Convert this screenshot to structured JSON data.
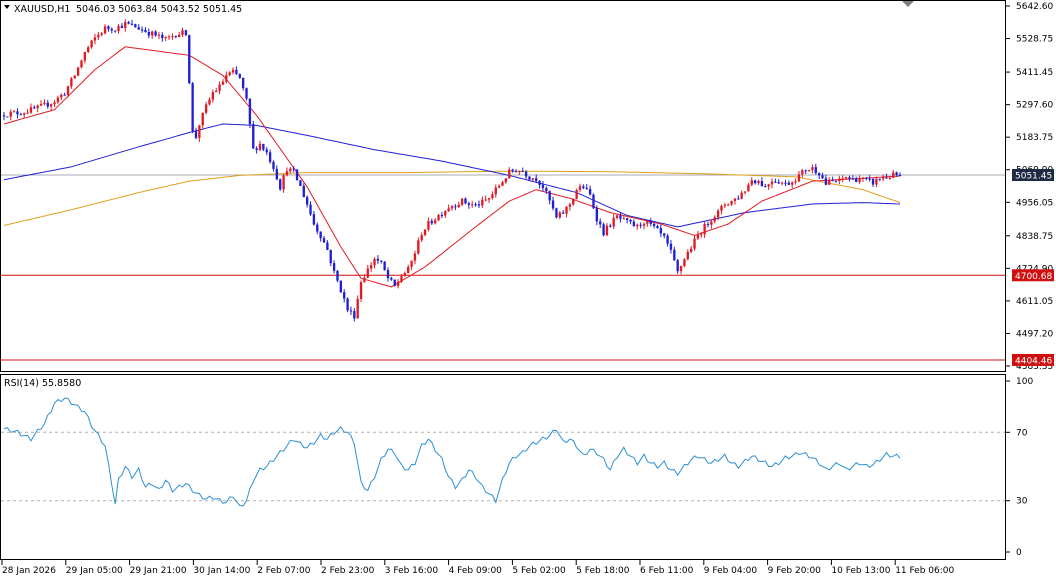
{
  "chart_data": [
    {
      "type": "candlestick",
      "title": "XAUUSD,H1",
      "ohlc_readout": [
        "5046.03",
        "5063.84",
        "5043.52",
        "5051.45"
      ],
      "y_ticks": [
        "5642.60",
        "5528.75",
        "5411.45",
        "5297.60",
        "5183.75",
        "5069.90",
        "4956.05",
        "4838.75",
        "4724.90",
        "4611.05",
        "4497.20",
        "4383.35"
      ],
      "ylim": [
        4383.35,
        5642.6
      ],
      "x_ticks": [
        "28 Jan 2026",
        "29 Jan 05:00",
        "29 Jan 21:00",
        "30 Jan 14:00",
        "2 Feb 07:00",
        "2 Feb 23:00",
        "3 Feb 16:00",
        "4 Feb 09:00",
        "5 Feb 02:00",
        "5 Feb 18:00",
        "6 Feb 11:00",
        "9 Feb 04:00",
        "9 Feb 20:00",
        "10 Feb 13:00",
        "11 Feb 06:00"
      ],
      "current_price": "5051.45",
      "horizontal_lines": [
        "4700.68",
        "4404.46"
      ],
      "colors": {
        "bull": "#e01b24",
        "bear": "#1f1fd6",
        "ma_fast": "#e01b24",
        "ma_mid": "#1f1fd6",
        "ma_slow": "#e0a019",
        "level": "#d01010",
        "price_tag": "#1f2a44"
      },
      "close_path": [
        [
          0,
          5265
        ],
        [
          5,
          5270
        ],
        [
          10,
          5285
        ],
        [
          15,
          5310
        ],
        [
          18,
          5340
        ],
        [
          21,
          5400
        ],
        [
          24,
          5480
        ],
        [
          27,
          5530
        ],
        [
          30,
          5565
        ],
        [
          33,
          5565
        ],
        [
          36,
          5580
        ],
        [
          39,
          5570
        ],
        [
          42,
          5555
        ],
        [
          45,
          5540
        ],
        [
          48,
          5525
        ],
        [
          51,
          5545
        ],
        [
          54,
          5550
        ],
        [
          55,
          5380
        ],
        [
          56,
          5200
        ],
        [
          57,
          5185
        ],
        [
          58,
          5230
        ],
        [
          60,
          5290
        ],
        [
          62,
          5340
        ],
        [
          64,
          5360
        ],
        [
          66,
          5400
        ],
        [
          68,
          5410
        ],
        [
          70,
          5390
        ],
        [
          72,
          5310
        ],
        [
          74,
          5140
        ],
        [
          76,
          5160
        ],
        [
          78,
          5130
        ],
        [
          80,
          5080
        ],
        [
          82,
          5010
        ],
        [
          84,
          5075
        ],
        [
          86,
          5060
        ],
        [
          88,
          5010
        ],
        [
          90,
          4950
        ],
        [
          92,
          4880
        ],
        [
          94,
          4840
        ],
        [
          96,
          4790
        ],
        [
          98,
          4710
        ],
        [
          100,
          4650
        ],
        [
          102,
          4580
        ],
        [
          104,
          4560
        ],
        [
          106,
          4680
        ],
        [
          108,
          4720
        ],
        [
          110,
          4760
        ],
        [
          112,
          4740
        ],
        [
          114,
          4690
        ],
        [
          116,
          4660
        ],
        [
          118,
          4700
        ],
        [
          120,
          4720
        ],
        [
          122,
          4780
        ],
        [
          124,
          4850
        ],
        [
          126,
          4880
        ],
        [
          128,
          4900
        ],
        [
          130,
          4920
        ],
        [
          132,
          4940
        ],
        [
          134,
          4950
        ],
        [
          136,
          4960
        ],
        [
          138,
          4950
        ],
        [
          140,
          4945
        ],
        [
          142,
          4955
        ],
        [
          144,
          4970
        ],
        [
          146,
          5000
        ],
        [
          148,
          5030
        ],
        [
          150,
          5060
        ],
        [
          152,
          5070
        ],
        [
          154,
          5065
        ],
        [
          156,
          5045
        ],
        [
          158,
          5040
        ],
        [
          160,
          5010
        ],
        [
          162,
          4960
        ],
        [
          164,
          4900
        ],
        [
          166,
          4920
        ],
        [
          168,
          4950
        ],
        [
          170,
          5000
        ],
        [
          172,
          5010
        ],
        [
          174,
          4980
        ],
        [
          176,
          4900
        ],
        [
          178,
          4850
        ],
        [
          180,
          4880
        ],
        [
          182,
          4905
        ],
        [
          184,
          4890
        ],
        [
          186,
          4880
        ],
        [
          188,
          4870
        ],
        [
          190,
          4890
        ],
        [
          192,
          4875
        ],
        [
          194,
          4855
        ],
        [
          196,
          4830
        ],
        [
          198,
          4780
        ],
        [
          200,
          4710
        ],
        [
          202,
          4760
        ],
        [
          204,
          4800
        ],
        [
          206,
          4840
        ],
        [
          208,
          4870
        ],
        [
          210,
          4900
        ],
        [
          212,
          4920
        ],
        [
          214,
          4950
        ],
        [
          216,
          4960
        ],
        [
          218,
          4975
        ],
        [
          220,
          5000
        ],
        [
          222,
          5035
        ],
        [
          224,
          5030
        ],
        [
          226,
          5010
        ],
        [
          228,
          5035
        ],
        [
          230,
          5030
        ],
        [
          232,
          5020
        ],
        [
          234,
          5030
        ],
        [
          236,
          5050
        ],
        [
          238,
          5070
        ],
        [
          240,
          5075
        ],
        [
          242,
          5060
        ],
        [
          244,
          5020
        ],
        [
          246,
          5030
        ],
        [
          248,
          5030
        ],
        [
          250,
          5045
        ],
        [
          252,
          5035
        ],
        [
          254,
          5040
        ],
        [
          256,
          5030
        ],
        [
          258,
          5025
        ],
        [
          260,
          5040
        ],
        [
          262,
          5045
        ],
        [
          264,
          5050
        ],
        [
          266,
          5051.45
        ]
      ],
      "n_bars": 267,
      "ma_fast_path": [
        [
          0,
          5230
        ],
        [
          15,
          5280
        ],
        [
          27,
          5420
        ],
        [
          36,
          5500
        ],
        [
          55,
          5470
        ],
        [
          65,
          5400
        ],
        [
          75,
          5260
        ],
        [
          90,
          5010
        ],
        [
          100,
          4800
        ],
        [
          106,
          4690
        ],
        [
          115,
          4660
        ],
        [
          125,
          4730
        ],
        [
          140,
          4870
        ],
        [
          150,
          4960
        ],
        [
          158,
          5000
        ],
        [
          168,
          4970
        ],
        [
          180,
          4920
        ],
        [
          195,
          4880
        ],
        [
          205,
          4840
        ],
        [
          215,
          4880
        ],
        [
          225,
          4960
        ],
        [
          240,
          5030
        ],
        [
          255,
          5040
        ],
        [
          266,
          5048
        ]
      ],
      "ma_mid_path": [
        [
          0,
          5035
        ],
        [
          20,
          5080
        ],
        [
          40,
          5150
        ],
        [
          55,
          5200
        ],
        [
          65,
          5230
        ],
        [
          75,
          5225
        ],
        [
          90,
          5190
        ],
        [
          110,
          5140
        ],
        [
          130,
          5100
        ],
        [
          150,
          5050
        ],
        [
          170,
          4990
        ],
        [
          185,
          4910
        ],
        [
          200,
          4870
        ],
        [
          220,
          4920
        ],
        [
          240,
          4950
        ],
        [
          255,
          4955
        ],
        [
          266,
          4950
        ]
      ],
      "ma_slow_path": [
        [
          0,
          4875
        ],
        [
          20,
          4930
        ],
        [
          40,
          4990
        ],
        [
          55,
          5030
        ],
        [
          70,
          5050
        ],
        [
          90,
          5060
        ],
        [
          120,
          5060
        ],
        [
          150,
          5065
        ],
        [
          180,
          5063
        ],
        [
          210,
          5055
        ],
        [
          235,
          5045
        ],
        [
          255,
          5000
        ],
        [
          266,
          4955
        ]
      ]
    },
    {
      "type": "line",
      "title": "RSI(14) 55.8580",
      "ylim": [
        0,
        100
      ],
      "y_ticks": [
        "100",
        "70",
        "30",
        "0"
      ],
      "levels": [
        70,
        30
      ],
      "color": "#2d8fd4",
      "path": [
        [
          0,
          72
        ],
        [
          4,
          70
        ],
        [
          8,
          66
        ],
        [
          12,
          75
        ],
        [
          15,
          87
        ],
        [
          18,
          90
        ],
        [
          21,
          86
        ],
        [
          24,
          82
        ],
        [
          26,
          74
        ],
        [
          28,
          68
        ],
        [
          30,
          62
        ],
        [
          32,
          40
        ],
        [
          33,
          28
        ],
        [
          34,
          42
        ],
        [
          36,
          50
        ],
        [
          38,
          44
        ],
        [
          40,
          48
        ],
        [
          42,
          38
        ],
        [
          44,
          40
        ],
        [
          46,
          36
        ],
        [
          48,
          42
        ],
        [
          50,
          36
        ],
        [
          52,
          38
        ],
        [
          54,
          40
        ],
        [
          56,
          36
        ],
        [
          58,
          33
        ],
        [
          60,
          31
        ],
        [
          62,
          32
        ],
        [
          64,
          30
        ],
        [
          66,
          29
        ],
        [
          68,
          33
        ],
        [
          70,
          26
        ],
        [
          72,
          30
        ],
        [
          74,
          42
        ],
        [
          76,
          48
        ],
        [
          78,
          50
        ],
        [
          80,
          54
        ],
        [
          82,
          58
        ],
        [
          84,
          62
        ],
        [
          86,
          66
        ],
        [
          88,
          63
        ],
        [
          90,
          61
        ],
        [
          92,
          64
        ],
        [
          94,
          68
        ],
        [
          96,
          66
        ],
        [
          98,
          70
        ],
        [
          100,
          72
        ],
        [
          102,
          70
        ],
        [
          104,
          64
        ],
        [
          106,
          40
        ],
        [
          108,
          36
        ],
        [
          110,
          44
        ],
        [
          112,
          54
        ],
        [
          114,
          60
        ],
        [
          116,
          58
        ],
        [
          118,
          50
        ],
        [
          120,
          48
        ],
        [
          122,
          52
        ],
        [
          124,
          62
        ],
        [
          126,
          66
        ],
        [
          128,
          60
        ],
        [
          130,
          54
        ],
        [
          132,
          44
        ],
        [
          134,
          38
        ],
        [
          136,
          42
        ],
        [
          138,
          48
        ],
        [
          140,
          44
        ],
        [
          142,
          38
        ],
        [
          144,
          34
        ],
        [
          146,
          30
        ],
        [
          148,
          42
        ],
        [
          150,
          52
        ],
        [
          152,
          56
        ],
        [
          154,
          58
        ],
        [
          156,
          62
        ],
        [
          158,
          64
        ],
        [
          160,
          66
        ],
        [
          162,
          68
        ],
        [
          164,
          72
        ],
        [
          166,
          64
        ],
        [
          168,
          66
        ],
        [
          170,
          62
        ],
        [
          172,
          56
        ],
        [
          174,
          60
        ],
        [
          176,
          58
        ],
        [
          178,
          54
        ],
        [
          180,
          48
        ],
        [
          182,
          56
        ],
        [
          184,
          60
        ],
        [
          186,
          56
        ],
        [
          188,
          52
        ],
        [
          190,
          56
        ],
        [
          192,
          52
        ],
        [
          194,
          50
        ],
        [
          196,
          52
        ],
        [
          198,
          48
        ],
        [
          200,
          46
        ],
        [
          202,
          50
        ],
        [
          204,
          54
        ],
        [
          206,
          56
        ],
        [
          208,
          54
        ],
        [
          210,
          52
        ],
        [
          212,
          54
        ],
        [
          214,
          56
        ],
        [
          216,
          52
        ],
        [
          218,
          50
        ],
        [
          220,
          53
        ],
        [
          222,
          56
        ],
        [
          224,
          54
        ],
        [
          226,
          52
        ],
        [
          228,
          50
        ],
        [
          230,
          52
        ],
        [
          232,
          55
        ],
        [
          234,
          56
        ],
        [
          236,
          58
        ],
        [
          238,
          57
        ],
        [
          240,
          55
        ],
        [
          242,
          52
        ],
        [
          244,
          48
        ],
        [
          246,
          50
        ],
        [
          248,
          52
        ],
        [
          250,
          48
        ],
        [
          252,
          50
        ],
        [
          254,
          52
        ],
        [
          256,
          50
        ],
        [
          258,
          51
        ],
        [
          260,
          54
        ],
        [
          262,
          57
        ],
        [
          264,
          56
        ],
        [
          266,
          55.858
        ]
      ]
    }
  ]
}
